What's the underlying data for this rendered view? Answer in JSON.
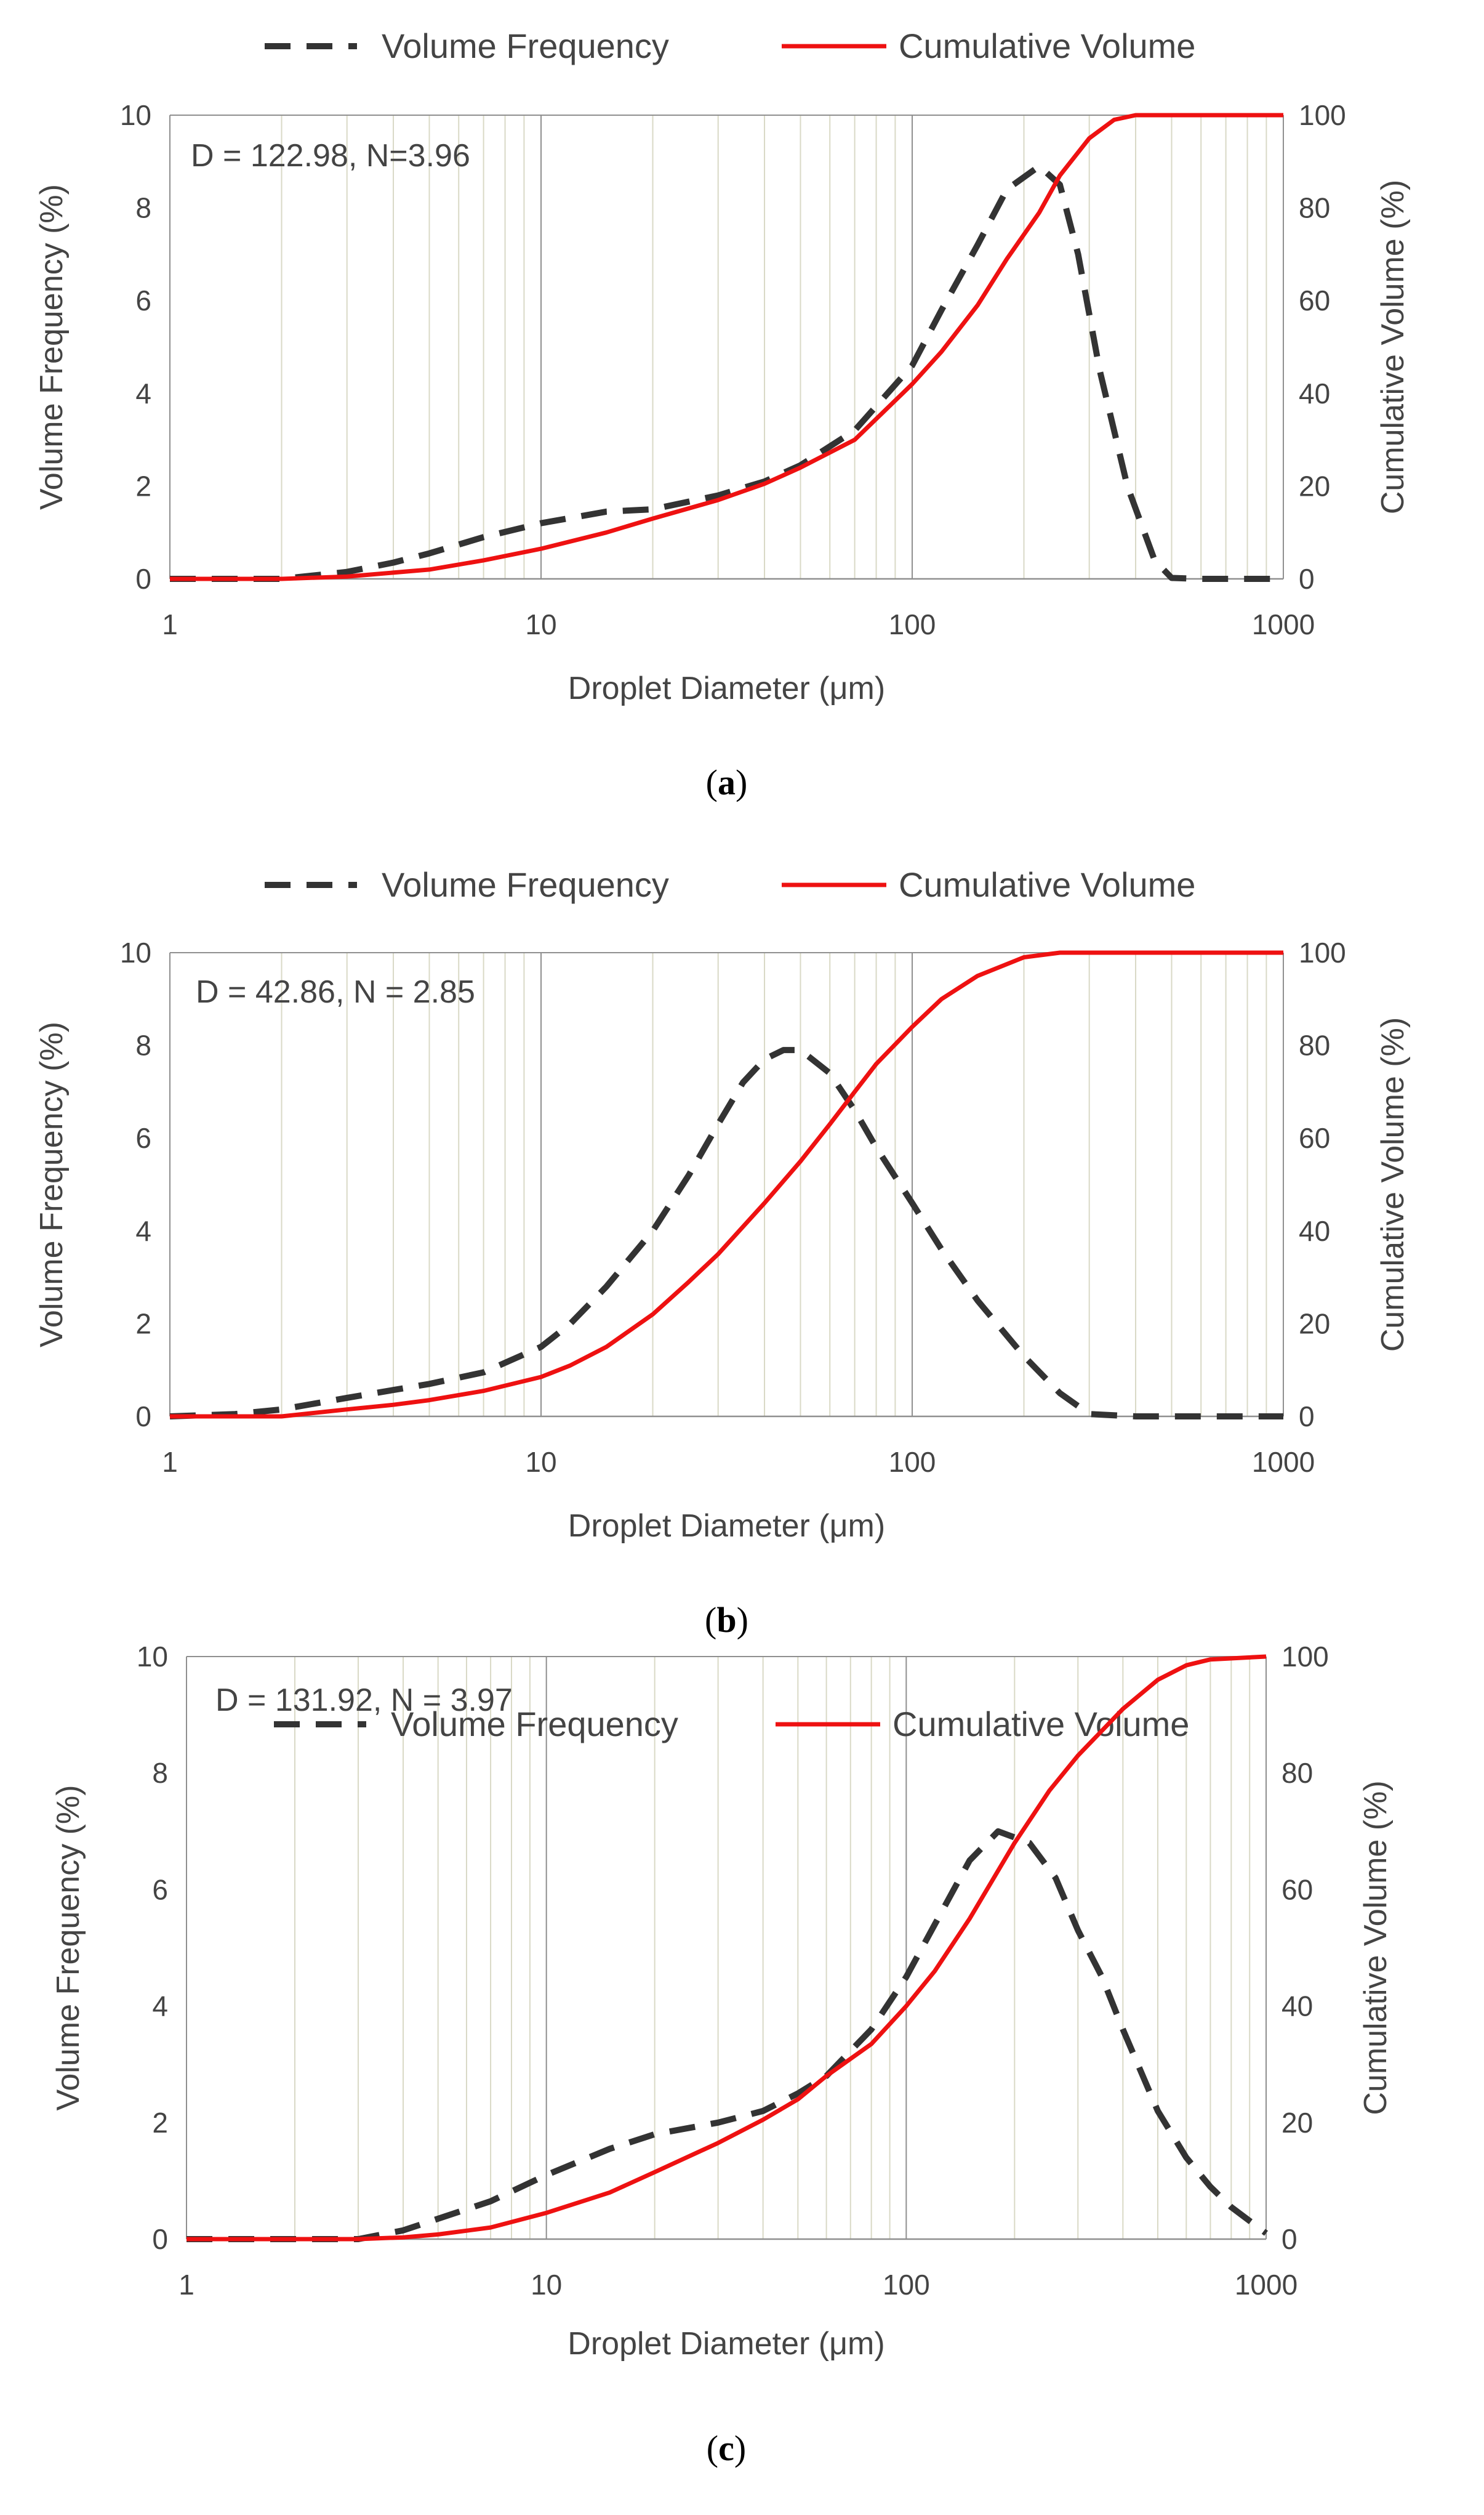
{
  "chart_data": [
    {
      "type": "line",
      "label": "(a)",
      "label_letter": "a",
      "annotation": "D = 122.98, N=3.96",
      "legend": [
        "Volume Frequency",
        "Cumulative Volume"
      ],
      "legend_position": "top",
      "xlabel": "Droplet Diameter (μm)",
      "ylabel_left": "Volume Frequency (%)",
      "ylabel_right": "Cumulative Volume (%)",
      "xscale": "log",
      "xlim": [
        1,
        1000
      ],
      "ylim_left": [
        0,
        10
      ],
      "ylim_right": [
        0,
        100
      ],
      "x_ticks": [
        "1",
        "10",
        "100",
        "1000"
      ],
      "y_ticks_left": [
        "0",
        "2",
        "4",
        "6",
        "8",
        "10"
      ],
      "y_ticks_right": [
        "0",
        "20",
        "40",
        "60",
        "80",
        "100"
      ],
      "series": [
        {
          "name": "Volume Frequency",
          "axis": "left",
          "x": [
            1,
            2,
            3,
            4,
            5,
            7,
            10,
            15,
            20,
            30,
            40,
            50,
            70,
            100,
            120,
            150,
            180,
            220,
            250,
            280,
            320,
            380,
            450,
            500,
            600,
            1000
          ],
          "y": [
            0,
            0,
            0.15,
            0.35,
            0.55,
            0.9,
            1.2,
            1.45,
            1.5,
            1.8,
            2.1,
            2.45,
            3.2,
            4.6,
            5.8,
            7.2,
            8.4,
            8.9,
            8.5,
            7.0,
            4.5,
            2.0,
            0.4,
            0.02,
            0,
            0
          ]
        },
        {
          "name": "Cumulative Volume",
          "axis": "right",
          "x": [
            1,
            2,
            3,
            5,
            7,
            10,
            15,
            20,
            30,
            40,
            50,
            70,
            100,
            120,
            150,
            180,
            220,
            250,
            300,
            350,
            400,
            500,
            1000
          ],
          "y": [
            0,
            0,
            0.5,
            2,
            4,
            6.5,
            10,
            13,
            17,
            20.5,
            24,
            30,
            42,
            49,
            59,
            69,
            79,
            87,
            95,
            99,
            100,
            100,
            100
          ]
        }
      ]
    },
    {
      "type": "line",
      "label": "(b)",
      "label_letter": "b",
      "annotation": "D = 42.86, N = 2.85",
      "legend": [
        "Volume Frequency",
        "Cumulative Volume"
      ],
      "legend_position": "top",
      "xlabel": "Droplet Diameter (μm)",
      "ylabel_left": "Volume Frequency (%)",
      "ylabel_right": "Cumulative Volume (%)",
      "xscale": "log",
      "xlim": [
        1,
        1000
      ],
      "ylim_left": [
        0,
        10
      ],
      "ylim_right": [
        0,
        100
      ],
      "x_ticks": [
        "1",
        "10",
        "100",
        "1000"
      ],
      "y_ticks_left": [
        "0",
        "2",
        "4",
        "6",
        "8",
        "10"
      ],
      "y_ticks_right": [
        "0",
        "20",
        "40",
        "60",
        "80",
        "100"
      ],
      "series": [
        {
          "name": "Volume Frequency",
          "axis": "left",
          "x": [
            1,
            1.5,
            2,
            3,
            5,
            7,
            10,
            12,
            15,
            20,
            25,
            30,
            35,
            40,
            45,
            50,
            60,
            70,
            80,
            100,
            120,
            150,
            200,
            250,
            300,
            400,
            1000
          ],
          "y": [
            0,
            0.05,
            0.15,
            0.4,
            0.7,
            0.95,
            1.5,
            2.0,
            2.8,
            4.0,
            5.2,
            6.3,
            7.2,
            7.7,
            7.9,
            7.9,
            7.4,
            6.6,
            5.8,
            4.6,
            3.6,
            2.5,
            1.3,
            0.5,
            0.05,
            0,
            0
          ]
        },
        {
          "name": "Cumulative Volume",
          "axis": "right",
          "x": [
            1,
            2,
            3,
            4,
            5,
            7,
            10,
            12,
            15,
            20,
            25,
            30,
            40,
            50,
            60,
            70,
            80,
            100,
            120,
            150,
            200,
            250,
            1000
          ],
          "y": [
            0,
            0,
            1.5,
            2.5,
            3.5,
            5.5,
            8.5,
            11,
            15,
            22,
            29,
            35,
            46,
            55,
            63,
            70,
            76,
            84,
            90,
            95,
            99,
            100,
            100
          ]
        }
      ]
    },
    {
      "type": "line",
      "label": "(c)",
      "label_letter": "c",
      "annotation": "D = 131.92, N = 3.97",
      "legend": [
        "Volume Frequency",
        "Cumulative Volume"
      ],
      "legend_position": "top",
      "xlabel": "Droplet Diameter (μm)",
      "ylabel_left": "Volume Frequency (%)",
      "ylabel_right": "Cumulative Volume (%)",
      "xscale": "log",
      "xlim": [
        1,
        1000
      ],
      "ylim_left": [
        0,
        10
      ],
      "ylim_right": [
        0,
        100
      ],
      "x_ticks": [
        "1",
        "10",
        "100",
        "1000"
      ],
      "y_ticks_left": [
        "0",
        "2",
        "4",
        "6",
        "8",
        "10"
      ],
      "y_ticks_right": [
        "0",
        "20",
        "40",
        "60",
        "80",
        "100"
      ],
      "series": [
        {
          "name": "Volume Frequency",
          "axis": "left",
          "x": [
            1,
            3,
            4,
            5,
            7,
            10,
            15,
            20,
            30,
            40,
            50,
            60,
            80,
            100,
            120,
            150,
            180,
            220,
            260,
            300,
            350,
            400,
            500,
            600,
            700,
            800,
            1000
          ],
          "y": [
            0,
            0,
            0.15,
            0.35,
            0.65,
            1.1,
            1.55,
            1.8,
            2.0,
            2.2,
            2.5,
            2.8,
            3.6,
            4.5,
            5.4,
            6.5,
            7.0,
            6.8,
            6.2,
            5.3,
            4.5,
            3.6,
            2.2,
            1.4,
            0.9,
            0.55,
            0.1
          ]
        },
        {
          "name": "Cumulative Volume",
          "axis": "right",
          "x": [
            1,
            3,
            4,
            5,
            7,
            10,
            15,
            20,
            30,
            40,
            50,
            60,
            80,
            100,
            120,
            150,
            200,
            250,
            300,
            400,
            500,
            600,
            700,
            1000
          ],
          "y": [
            0,
            0,
            0.3,
            0.8,
            2,
            4.5,
            8,
            11.5,
            16.5,
            20.5,
            24,
            28,
            33.5,
            40,
            46,
            55,
            68,
            77,
            83,
            91,
            96,
            98.5,
            99.5,
            100
          ]
        }
      ]
    }
  ]
}
